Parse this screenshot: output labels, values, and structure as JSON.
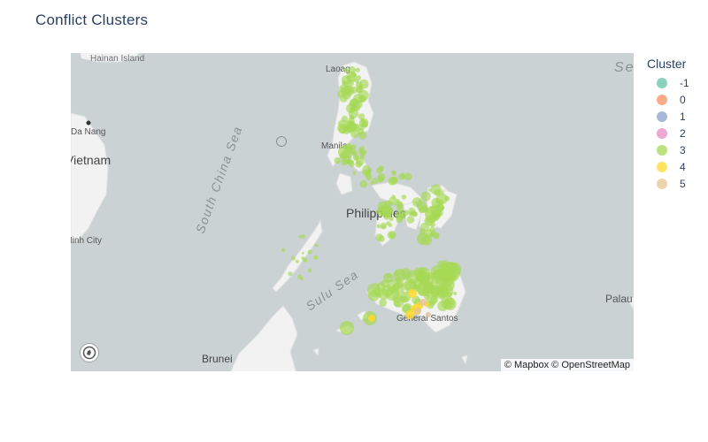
{
  "chart": {
    "title": "Conflict Clusters"
  },
  "map": {
    "style": "light",
    "labels": {
      "sea_top": "Sea",
      "hainan": "Hainan Island",
      "laoag": "Laoag",
      "south_china_sea": "South China Sea",
      "da_nang": "Da Nang",
      "vietnam": "Vietnam",
      "manila": "Manila",
      "philippines": "Philippines",
      "ho_chi_minh": "Ho Chi Minh City",
      "sulu_sea": "Sulu Sea",
      "palau": "Palau",
      "general_santos": "General Santos",
      "brunei": "Brunei"
    },
    "attribution": "© Mapbox © OpenStreetMap",
    "colors": {
      "water": "#cad2d3",
      "land": "#f2f2f2"
    }
  },
  "legend": {
    "title": "Cluster",
    "items": [
      {
        "label": "-1",
        "color": "#66c2a5"
      },
      {
        "label": "0",
        "color": "#fc8d62"
      },
      {
        "label": "1",
        "color": "#8da0cb"
      },
      {
        "label": "2",
        "color": "#e78ac3"
      },
      {
        "label": "3",
        "color": "#a6d854"
      },
      {
        "label": "4",
        "color": "#ffd92f"
      },
      {
        "label": "5",
        "color": "#e5c494"
      }
    ]
  }
}
